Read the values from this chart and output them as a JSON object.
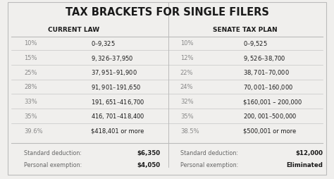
{
  "title": "TAX BRACKETS FOR SINGLE FILERS",
  "col_headers": [
    "CURRENT LAW",
    "SENATE TAX PLAN"
  ],
  "current_law": [
    [
      "10%",
      "$0 – $9,325"
    ],
    [
      "15%",
      "$9,326 – $37,950"
    ],
    [
      "25%",
      "$37,951 – $91,900"
    ],
    [
      "28%",
      "$91,901 – $191,650"
    ],
    [
      "33%",
      "$191,651 – $416,700"
    ],
    [
      "35%",
      "$416,701 – $418,400"
    ],
    [
      "39.6%",
      "$418,401 or more"
    ]
  ],
  "senate_plan": [
    [
      "10%",
      "$0 – $9,525"
    ],
    [
      "12%",
      "$9,526 – $38,700"
    ],
    [
      "22%",
      "$38,701 – $70,000"
    ],
    [
      "24%",
      "$70,001 – $160,000"
    ],
    [
      "32%",
      "$160,001 – 200,000"
    ],
    [
      "35%",
      "$200,001 – $500,000"
    ],
    [
      "38.5%",
      "$500,001 or more"
    ]
  ],
  "footer_current": [
    [
      "Standard deduction:",
      "$6,350"
    ],
    [
      "Personal exemption:",
      "$4,050"
    ]
  ],
  "footer_senate": [
    [
      "Standard deduction:",
      "$12,000"
    ],
    [
      "Personal exemption:",
      "Eliminated"
    ]
  ],
  "bg_color": "#f0efed",
  "line_color": "#bbbbbb",
  "title_color": "#1a1a1a",
  "header_color": "#1a1a1a",
  "rate_color": "#888888",
  "range_color": "#1a1a1a",
  "footer_label_color": "#666666",
  "footer_value_color": "#1a1a1a"
}
